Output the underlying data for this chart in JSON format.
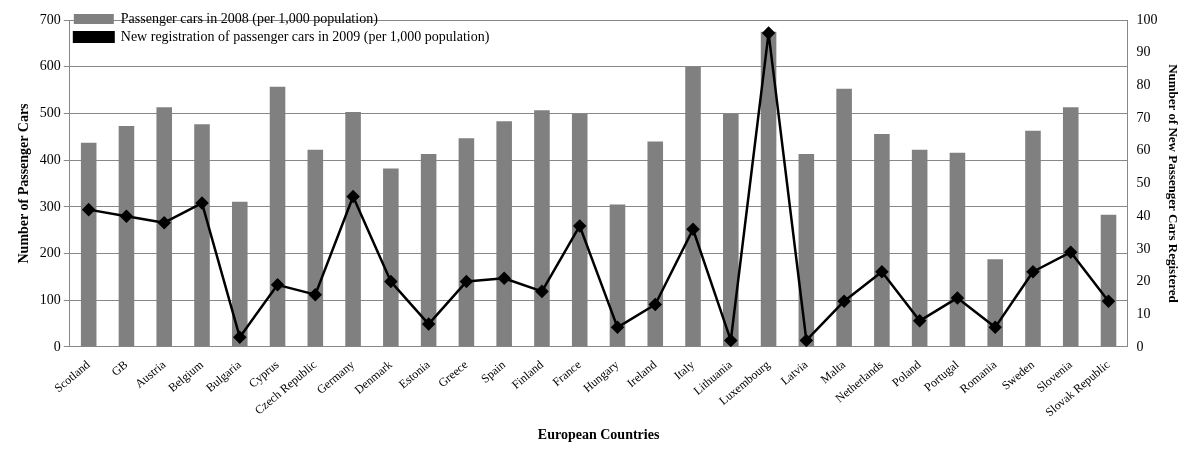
{
  "chart_data": {
    "type": "bar",
    "xlabel": "European Countries",
    "ylabel": "Number of Passenger Cars",
    "y2label": "Number of New Passenger Cars Registered",
    "categories": [
      "Scotland",
      "GB",
      "Austria",
      "Belgium",
      "Bulgaria",
      "Cyprus",
      "Czech Republic",
      "Germany",
      "Denmark",
      "Estonia",
      "Greece",
      "Spain",
      "Finland",
      "France",
      "Hungary",
      "Ireland",
      "Italy",
      "Lithuania",
      "Luxembourg",
      "Latvia",
      "Malta",
      "Netherlands",
      "Poland",
      "Portugal",
      "Romania",
      "Sweden",
      "Slovenia",
      "Slovak Republic"
    ],
    "series": [
      {
        "name": "Passenger cars in 2008 (per 1,000 population)",
        "color": "#808080",
        "values": [
          437,
          473,
          513,
          477,
          311,
          557,
          422,
          503,
          382,
          413,
          447,
          483,
          507,
          499,
          305,
          440,
          600,
          499,
          675,
          413,
          553,
          456,
          422,
          416,
          188,
          463,
          513,
          283
        ]
      },
      {
        "name": "New registration of passenger cars in 2009 (per 1,000 population)",
        "type": "line",
        "axis": "y2",
        "color": "#000000",
        "marker": "diamond",
        "values": [
          42,
          40,
          38,
          44,
          3,
          19,
          16,
          46,
          20,
          7,
          20,
          21,
          17,
          37,
          6,
          13,
          36,
          2,
          96,
          2,
          14,
          23,
          8,
          15,
          6,
          23,
          29,
          14
        ]
      }
    ],
    "ylim": [
      0,
      700
    ],
    "yticks": [
      0,
      100,
      200,
      300,
      400,
      500,
      600,
      700
    ],
    "y2lim": [
      0,
      100
    ],
    "y2ticks": [
      0,
      10,
      20,
      30,
      40,
      50,
      60,
      70,
      80,
      90,
      100
    ],
    "grid": "y",
    "legend": "top left"
  }
}
